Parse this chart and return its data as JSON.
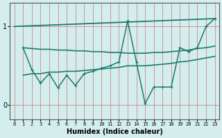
{
  "xlabel": "Humidex (Indice chaleur)",
  "bg_color": "#d4eeee",
  "line_color": "#1a7a6e",
  "grid_color": "#cc8888",
  "x_ticks": [
    0,
    1,
    2,
    3,
    4,
    5,
    6,
    7,
    8,
    9,
    10,
    11,
    12,
    13,
    14,
    15,
    16,
    17,
    18,
    19,
    20,
    21,
    22,
    23
  ],
  "y_ticks": [
    0,
    1
  ],
  "xlim": [
    -0.5,
    23.5
  ],
  "ylim": [
    -0.18,
    1.3
  ],
  "series": [
    {
      "x": [
        0,
        23
      ],
      "y": [
        1.0,
        1.1
      ],
      "marker": null,
      "lw": 1.3
    },
    {
      "x": [
        1,
        2,
        3,
        4,
        5,
        6,
        7,
        8,
        9,
        10,
        11,
        12,
        13,
        14,
        15,
        16,
        17,
        18,
        19,
        20,
        21,
        22,
        23
      ],
      "y": [
        0.73,
        0.72,
        0.71,
        0.71,
        0.7,
        0.7,
        0.69,
        0.69,
        0.68,
        0.68,
        0.67,
        0.67,
        0.66,
        0.66,
        0.66,
        0.67,
        0.67,
        0.68,
        0.69,
        0.7,
        0.72,
        0.73,
        0.75
      ],
      "marker": null,
      "lw": 1.2
    },
    {
      "x": [
        1,
        2,
        3,
        4,
        5,
        6,
        7,
        8,
        9,
        10,
        11,
        12,
        13,
        14,
        15,
        16,
        17,
        18,
        19,
        20,
        21,
        22,
        23
      ],
      "y": [
        0.38,
        0.4,
        0.4,
        0.42,
        0.42,
        0.43,
        0.43,
        0.44,
        0.45,
        0.46,
        0.47,
        0.48,
        0.5,
        0.5,
        0.5,
        0.51,
        0.52,
        0.53,
        0.55,
        0.56,
        0.58,
        0.6,
        0.62
      ],
      "marker": null,
      "lw": 1.2
    },
    {
      "x": [
        1,
        2,
        3,
        4,
        5,
        6,
        7,
        8,
        9,
        10,
        11,
        12,
        13,
        14,
        15,
        16,
        17,
        18,
        19,
        20,
        21,
        22,
        23
      ],
      "y": [
        0.73,
        0.45,
        0.28,
        0.4,
        0.22,
        0.38,
        0.25,
        0.4,
        0.43,
        0.47,
        0.5,
        0.55,
        1.07,
        0.55,
        0.02,
        0.23,
        0.23,
        0.23,
        0.73,
        0.68,
        0.73,
        1.0,
        1.1
      ],
      "marker": "+",
      "lw": 1.1
    }
  ]
}
